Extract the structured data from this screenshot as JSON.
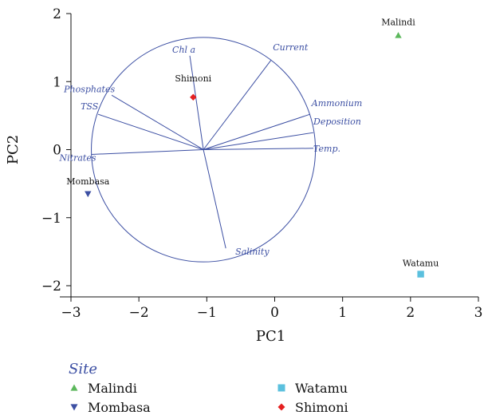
{
  "chart_data": {
    "type": "scatter",
    "title": "",
    "xlabel": "PC1",
    "ylabel": "PC2",
    "xlim": [
      -3,
      3
    ],
    "ylim": [
      -2,
      2
    ],
    "x_ticks": [
      -3,
      -2,
      -1,
      0,
      1,
      2,
      3
    ],
    "y_ticks": [
      -2,
      -1,
      0,
      1,
      2
    ],
    "x_tick_labels": [
      "−3",
      "−2",
      "−1",
      "0",
      "1",
      "2",
      "3"
    ],
    "y_tick_labels": [
      "−2",
      "−1",
      "0",
      "1",
      "2"
    ],
    "grid": false,
    "circle": {
      "center": [
        -1.05,
        0.0
      ],
      "radius": 1.65
    },
    "loadings": [
      {
        "name": "Chl a",
        "x": -1.25,
        "y": 1.38
      },
      {
        "name": "Current",
        "x": -0.05,
        "y": 1.32
      },
      {
        "name": "Phosphates",
        "x": -2.4,
        "y": 0.8
      },
      {
        "name": "TSS",
        "x": -2.6,
        "y": 0.52
      },
      {
        "name": "Ammonium",
        "x": 0.52,
        "y": 0.52
      },
      {
        "name": "Deposition",
        "x": 0.57,
        "y": 0.25
      },
      {
        "name": "Temp.",
        "x": 0.57,
        "y": 0.02
      },
      {
        "name": "Nitrates",
        "x": -2.7,
        "y": -0.07
      },
      {
        "name": "Salinity",
        "x": -0.72,
        "y": -1.45
      }
    ],
    "series": [
      {
        "name": "Malindi",
        "marker": "triangle-up",
        "color": "#5cb85c",
        "x": [
          1.82
        ],
        "y": [
          1.68
        ],
        "labels": [
          "Malindi"
        ]
      },
      {
        "name": "Mombasa",
        "marker": "triangle-down",
        "color": "#3c4fa3",
        "x": [
          -2.75
        ],
        "y": [
          -0.65
        ],
        "labels": [
          "Mombasa"
        ]
      },
      {
        "name": "Shimoni",
        "marker": "diamond",
        "color": "#e52020",
        "x": [
          -1.2
        ],
        "y": [
          0.77
        ],
        "labels": [
          "Shimoni"
        ]
      },
      {
        "name": "Watamu",
        "marker": "square",
        "color": "#5bc0de",
        "x": [
          2.15
        ],
        "y": [
          -1.83
        ],
        "labels": [
          "Watamu"
        ]
      }
    ],
    "legend": {
      "title": "Site",
      "placement": "bottom",
      "entries": [
        "Malindi",
        "Watamu",
        "Mombasa",
        "Shimoni"
      ]
    },
    "colors": {
      "loading": "#3c4fa3",
      "axis": "#111111"
    }
  }
}
